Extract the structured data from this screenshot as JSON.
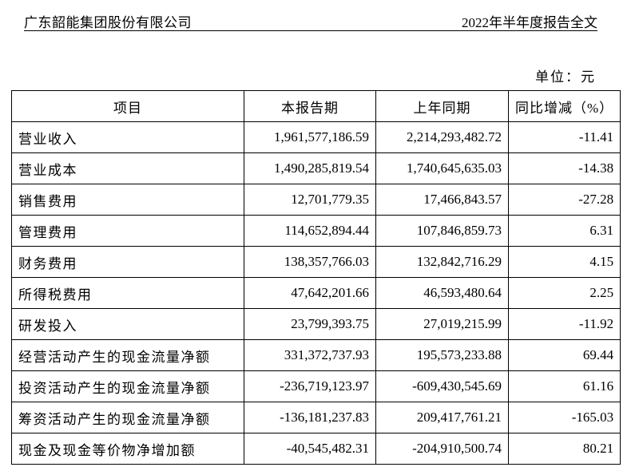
{
  "header": {
    "company": "广东韶能集团股份有限公司",
    "report": "2022年半年度报告全文"
  },
  "unit": "单位：元",
  "table": {
    "columns": [
      "项目",
      "本报告期",
      "上年同期",
      "同比增减（%）"
    ],
    "rows": [
      [
        "营业收入",
        "1,961,577,186.59",
        "2,214,293,482.72",
        "-11.41"
      ],
      [
        "营业成本",
        "1,490,285,819.54",
        "1,740,645,635.03",
        "-14.38"
      ],
      [
        "销售费用",
        "12,701,779.35",
        "17,466,843.57",
        "-27.28"
      ],
      [
        "管理费用",
        "114,652,894.44",
        "107,846,859.73",
        "6.31"
      ],
      [
        "财务费用",
        "138,357,766.03",
        "132,842,716.29",
        "4.15"
      ],
      [
        "所得税费用",
        "47,642,201.66",
        "46,593,480.64",
        "2.25"
      ],
      [
        "研发投入",
        "23,799,393.75",
        "27,019,215.99",
        "-11.92"
      ],
      [
        "经营活动产生的现金流量净额",
        "331,372,737.93",
        "195,573,233.88",
        "69.44"
      ],
      [
        "投资活动产生的现金流量净额",
        "-236,719,123.97",
        "-609,430,545.69",
        "61.16"
      ],
      [
        "筹资活动产生的现金流量净额",
        "-136,181,237.83",
        "209,417,761.21",
        "-165.03"
      ],
      [
        "现金及现金等价物净增加额",
        "-40,545,482.31",
        "-204,910,500.74",
        "80.21"
      ]
    ]
  }
}
